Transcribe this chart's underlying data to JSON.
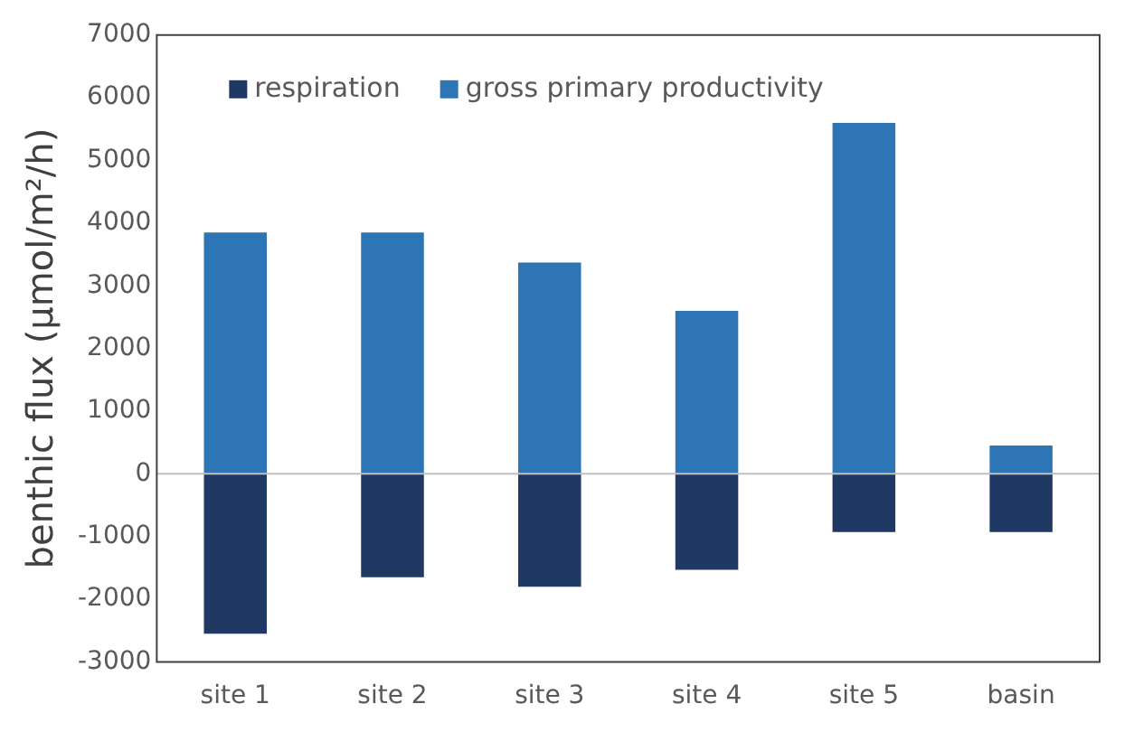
{
  "chart_data": {
    "type": "bar",
    "ylabel": "benthic flux (µmol/m²/h)",
    "categories": [
      "site 1",
      "site 2",
      "site 3",
      "site 4",
      "site 5",
      "basin"
    ],
    "series": [
      {
        "name": "respiration",
        "color": "#1f3864",
        "values": [
          -2550,
          -1650,
          -1800,
          -1530,
          -930,
          -930
        ]
      },
      {
        "name": "gross primary productivity",
        "color": "#2e75b6",
        "values": [
          3850,
          3850,
          3370,
          2600,
          5600,
          450
        ]
      }
    ],
    "stacked": true,
    "ylim": [
      -3000,
      7000
    ],
    "yticks": [
      -3000,
      -2000,
      -1000,
      0,
      1000,
      2000,
      3000,
      4000,
      5000,
      6000,
      7000
    ],
    "grid": false,
    "legend": "top left",
    "ref_lines": [
      {
        "axis": "y",
        "value": 0,
        "color": "#bfbfbf"
      }
    ]
  }
}
